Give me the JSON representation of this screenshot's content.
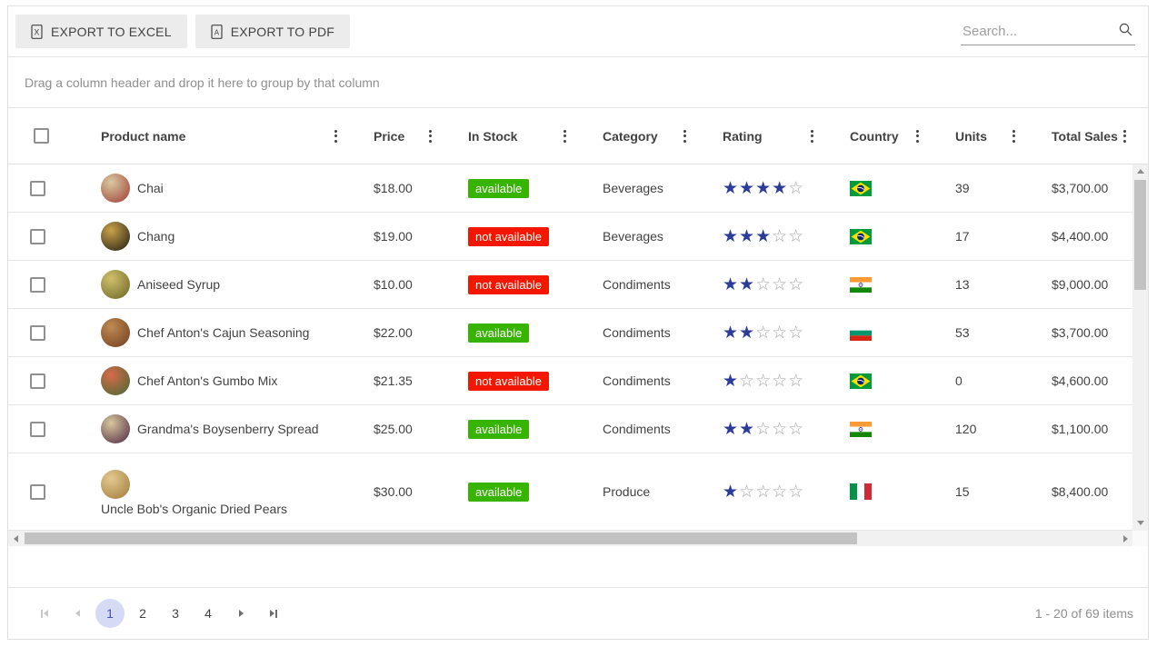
{
  "toolbar": {
    "excel_button": "Export to Excel",
    "pdf_button": "Export to PDF",
    "excel_icon_letter": "x",
    "pdf_icon_letter": "A",
    "search_placeholder": "Search..."
  },
  "group_panel": {
    "hint": "Drag a column header and drop it here to group by that column"
  },
  "grid": {
    "columns": [
      {
        "label": "Product name",
        "field": "product"
      },
      {
        "label": "Price",
        "field": "price"
      },
      {
        "label": "In Stock",
        "field": "stock"
      },
      {
        "label": "Category",
        "field": "category"
      },
      {
        "label": "Rating",
        "field": "rating"
      },
      {
        "label": "Country",
        "field": "country"
      },
      {
        "label": "Units",
        "field": "units"
      },
      {
        "label": "Total Sales",
        "field": "total"
      }
    ],
    "rows": [
      {
        "product": "Chai",
        "photo": [
          "#d9c9a3",
          "#9e3b30"
        ],
        "price": "$18.00",
        "status": "available",
        "category": "Beverages",
        "rating": 4,
        "country": "Brazil",
        "flag": "br",
        "units": "39",
        "total": "$3,700.00",
        "stacked": false
      },
      {
        "product": "Chang",
        "photo": [
          "#caa34a",
          "#1d1a14"
        ],
        "price": "$19.00",
        "status": "not available",
        "category": "Beverages",
        "rating": 3,
        "country": "Brazil",
        "flag": "br",
        "units": "17",
        "total": "$4,400.00",
        "stacked": false
      },
      {
        "product": "Aniseed Syrup",
        "photo": [
          "#cfc06a",
          "#6b6426"
        ],
        "price": "$10.00",
        "status": "not available",
        "category": "Condiments",
        "rating": 2,
        "country": "India",
        "flag": "in",
        "units": "13",
        "total": "$9,000.00",
        "stacked": false
      },
      {
        "product": "Chef Anton's Cajun Seasoning",
        "photo": [
          "#c08a52",
          "#6e3d1f"
        ],
        "price": "$22.00",
        "status": "available",
        "category": "Condiments",
        "rating": 2,
        "country": "Bulgaria",
        "flag": "bg",
        "units": "53",
        "total": "$3,700.00",
        "stacked": false
      },
      {
        "product": "Chef Anton's Gumbo Mix",
        "photo": [
          "#d96a4a",
          "#3f6b33"
        ],
        "price": "$21.35",
        "status": "not available",
        "category": "Condiments",
        "rating": 1,
        "country": "Brazil",
        "flag": "br",
        "units": "0",
        "total": "$4,600.00",
        "stacked": false
      },
      {
        "product": "Grandma's Boysenberry Spread",
        "photo": [
          "#d8c79e",
          "#4a2640"
        ],
        "price": "$25.00",
        "status": "available",
        "category": "Condiments",
        "rating": 2,
        "country": "India",
        "flag": "in",
        "units": "120",
        "total": "$1,100.00",
        "stacked": false
      },
      {
        "product": "Uncle Bob's Organic Dried Pears",
        "photo": [
          "#e3c98f",
          "#a07b3a"
        ],
        "price": "$30.00",
        "status": "available",
        "category": "Produce",
        "rating": 1,
        "country": "Italy",
        "flag": "it",
        "units": "15",
        "total": "$8,400.00",
        "stacked": true
      }
    ],
    "status_colors": {
      "available": "#37b400",
      "not available": "#f31700"
    },
    "rating_max": 5
  },
  "pager": {
    "pages": [
      "1",
      "2",
      "3",
      "4"
    ],
    "current_page": "1",
    "info": "1 - 20 of 69 items"
  },
  "colors": {
    "star_filled": "#2d3c96",
    "star_empty": "#a6a6a6",
    "page_selected_bg": "#d6dbf5",
    "page_selected_text": "#4050b5"
  }
}
